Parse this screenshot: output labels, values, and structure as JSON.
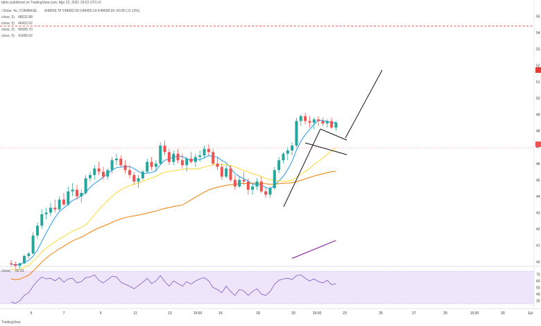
{
  "header": {
    "title_line": "tahin published on TradingView.com, Ağu 22, 2021 19:03 UTC+3",
    "symbol_line": "/ Dolar, 4s, COINBASE",
    "ohlc": "A48509.78  Y48582.00  D48455.14  K48508.99  -60.80 (-0.13%)"
  },
  "legend": [
    {
      "label": "close, 0)",
      "value": "48532.88",
      "color": "#2196f3"
    },
    {
      "label": "close, 0)",
      "value": "46422.62",
      "color": "#fdd835"
    },
    {
      "label": "close, 0)",
      "value": "45586.70",
      "color": "#f57c00"
    },
    {
      "label": "close, 0)",
      "value": "41680.52",
      "color": "#8e24aa"
    }
  ],
  "rsi_label": "close)",
  "rsi_value": "56.43",
  "watermark": "TradingView",
  "colors": {
    "up": "#26a69a",
    "down": "#ef5350",
    "ma_blue": "#2196f3",
    "ma_yellow": "#fdd835",
    "ma_orange": "#f57c00",
    "ma_purple": "#8e24aa",
    "rsi_line": "#7e57c2",
    "rsi_fill": "#efe5fb",
    "resistance": "#e53935"
  },
  "chart_data": {
    "type": "candlestick",
    "x_ticks": [
      "5",
      "7",
      "9",
      "11",
      "13",
      "15:00",
      "16",
      "18",
      "20",
      "15:00",
      "23",
      "25",
      "27",
      "29",
      "15:00",
      "30",
      "Eyl"
    ],
    "y_ticks": [
      "55",
      "54",
      "53",
      "52",
      "51",
      "50",
      "49",
      "48",
      "47",
      "46",
      "45",
      "44",
      "43",
      "42",
      "41",
      "40"
    ],
    "rsi_ticks": [
      "70",
      "60",
      "50",
      "40",
      "30"
    ],
    "price_range": [
      39800,
      56000
    ],
    "resistance_level": 54400,
    "candles": [
      [
        39900,
        40100,
        39700,
        39850
      ],
      [
        39850,
        40000,
        39600,
        39750
      ],
      [
        39750,
        39950,
        39550,
        39900
      ],
      [
        39900,
        40450,
        39850,
        40350
      ],
      [
        40350,
        40600,
        40200,
        40500
      ],
      [
        40500,
        41800,
        40450,
        41600
      ],
      [
        41600,
        42400,
        41400,
        42200
      ],
      [
        42200,
        43200,
        42000,
        42900
      ],
      [
        42900,
        43300,
        42600,
        43000
      ],
      [
        43000,
        43600,
        42800,
        43300
      ],
      [
        43300,
        43800,
        43000,
        43200
      ],
      [
        43200,
        44000,
        43100,
        43800
      ],
      [
        43800,
        44200,
        43400,
        43500
      ],
      [
        43500,
        44600,
        43400,
        44300
      ],
      [
        44300,
        44800,
        44000,
        44400
      ],
      [
        44400,
        44700,
        43800,
        44000
      ],
      [
        44000,
        44400,
        43600,
        44200
      ],
      [
        44200,
        45300,
        44100,
        45100
      ],
      [
        45100,
        45500,
        44900,
        45300
      ],
      [
        45300,
        45900,
        45000,
        45700
      ],
      [
        45700,
        46100,
        45300,
        45500
      ],
      [
        45500,
        45800,
        45000,
        45200
      ],
      [
        45200,
        45700,
        45000,
        45600
      ],
      [
        45600,
        46400,
        45400,
        46200
      ],
      [
        46200,
        46600,
        45900,
        46300
      ],
      [
        46300,
        46500,
        45800,
        45900
      ],
      [
        45900,
        46200,
        45400,
        45600
      ],
      [
        45600,
        45900,
        45100,
        45300
      ],
      [
        45300,
        45500,
        44700,
        44900
      ],
      [
        44900,
        45300,
        44500,
        45100
      ],
      [
        45100,
        45600,
        45000,
        45500
      ],
      [
        45500,
        46300,
        45400,
        46100
      ],
      [
        46100,
        46400,
        45600,
        45800
      ],
      [
        45800,
        46200,
        45500,
        46000
      ],
      [
        46000,
        47300,
        45900,
        47100
      ],
      [
        47100,
        47400,
        46500,
        46700
      ],
      [
        46700,
        46900,
        45900,
        46100
      ],
      [
        46100,
        46800,
        45900,
        46600
      ],
      [
        46600,
        46900,
        46000,
        46200
      ],
      [
        46200,
        46600,
        45700,
        45900
      ],
      [
        45900,
        46400,
        45500,
        46300
      ],
      [
        46300,
        46700,
        46000,
        46100
      ],
      [
        46100,
        46600,
        45800,
        46400
      ],
      [
        46400,
        46800,
        46100,
        46500
      ],
      [
        46500,
        47100,
        46300,
        46900
      ],
      [
        46900,
        47200,
        46500,
        46700
      ],
      [
        46700,
        46900,
        45900,
        46000
      ],
      [
        46000,
        46400,
        45600,
        45800
      ],
      [
        45800,
        46000,
        45000,
        45200
      ],
      [
        45200,
        45900,
        45100,
        45700
      ],
      [
        45700,
        45900,
        44900,
        45000
      ],
      [
        45000,
        45300,
        44400,
        44600
      ],
      [
        44600,
        45200,
        44500,
        45000
      ],
      [
        45000,
        45500,
        44700,
        44900
      ],
      [
        44900,
        45100,
        44100,
        44400
      ],
      [
        44400,
        44800,
        44100,
        44600
      ],
      [
        44600,
        45100,
        44400,
        44900
      ],
      [
        44900,
        45200,
        44200,
        44300
      ],
      [
        44300,
        44500,
        43900,
        44100
      ],
      [
        44100,
        44600,
        43900,
        44500
      ],
      [
        44500,
        45800,
        44400,
        45600
      ],
      [
        45600,
        46400,
        45400,
        46200
      ],
      [
        46200,
        46700,
        46000,
        46600
      ],
      [
        46600,
        47000,
        46200,
        46800
      ],
      [
        46800,
        47300,
        46500,
        47100
      ],
      [
        47100,
        48800,
        47000,
        48600
      ],
      [
        48600,
        49000,
        48300,
        48900
      ],
      [
        48900,
        49100,
        48400,
        48600
      ],
      [
        48600,
        48900,
        48200,
        48500
      ],
      [
        48500,
        48800,
        48100,
        48700
      ],
      [
        48700,
        48900,
        48300,
        48600
      ],
      [
        48600,
        48800,
        48300,
        48450
      ],
      [
        48450,
        48700,
        48200,
        48600
      ],
      [
        48600,
        48800,
        48100,
        48200
      ],
      [
        48200,
        48600,
        48000,
        48500
      ]
    ],
    "rsi": [
      28,
      26,
      30,
      38,
      42,
      52,
      60,
      66,
      63,
      64,
      60,
      65,
      58,
      63,
      64,
      57,
      59,
      65,
      66,
      69,
      61,
      57,
      62,
      67,
      66,
      58,
      55,
      52,
      48,
      53,
      58,
      64,
      56,
      60,
      68,
      59,
      52,
      60,
      56,
      52,
      59,
      55,
      60,
      63,
      65,
      60,
      50,
      47,
      42,
      52,
      44,
      38,
      47,
      45,
      38,
      44,
      48,
      40,
      38,
      44,
      55,
      61,
      63,
      64,
      62,
      68,
      69,
      64,
      60,
      63,
      59,
      57,
      61,
      54,
      56
    ]
  }
}
